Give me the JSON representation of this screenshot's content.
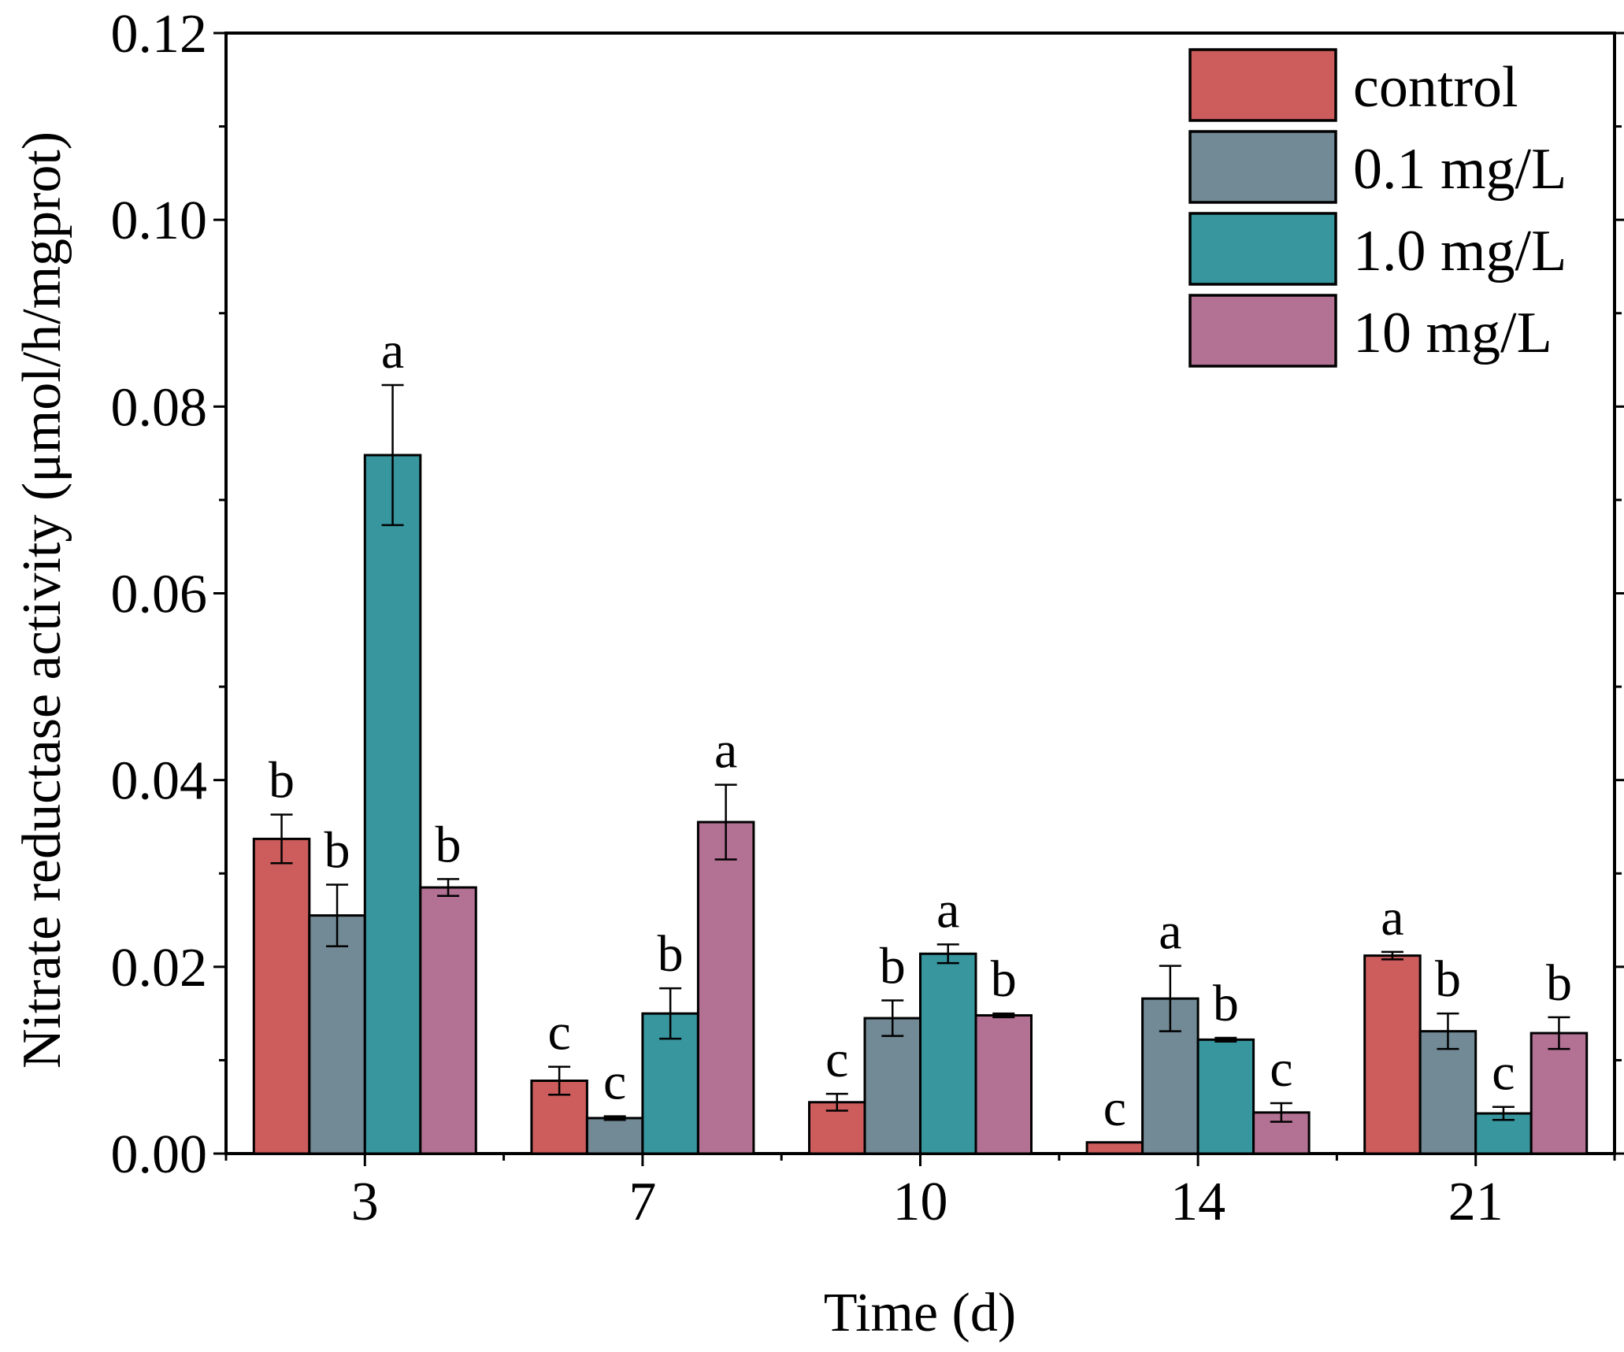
{
  "chart_data": {
    "type": "bar",
    "title": "",
    "xlabel": "Time (d)",
    "ylabel": "Nitrate reductase activity (μmol/h/mgprot)",
    "ylim": [
      0,
      0.12
    ],
    "yticks": [
      "0.00",
      "0.02",
      "0.04",
      "0.06",
      "0.08",
      "0.10",
      "0.12"
    ],
    "ytick_values": [
      0,
      0.02,
      0.04,
      0.06,
      0.08,
      0.1,
      0.12
    ],
    "categories": [
      "3",
      "7",
      "10",
      "14",
      "21"
    ],
    "legend_position": "top-right",
    "series": [
      {
        "name": "control",
        "color": "#cd5c5c",
        "values": [
          0.0337,
          0.0078,
          0.0055,
          0.0012,
          0.0212
        ],
        "errors": [
          0.0026,
          0.0015,
          0.0009,
          0.0,
          0.0004
        ],
        "letters": [
          "b",
          "c",
          "c",
          "c",
          "a"
        ]
      },
      {
        "name": "0.1 mg/L",
        "color": "#728a96",
        "values": [
          0.0255,
          0.0038,
          0.0145,
          0.0166,
          0.0131
        ],
        "errors": [
          0.0033,
          0.0002,
          0.0019,
          0.0035,
          0.0019
        ],
        "letters": [
          "b",
          "c",
          "b",
          "a",
          "b"
        ]
      },
      {
        "name": "1.0 mg/L",
        "color": "#38969f",
        "values": [
          0.0748,
          0.015,
          0.0214,
          0.0122,
          0.0043
        ],
        "errors": [
          0.0075,
          0.0027,
          0.001,
          0.0002,
          0.0007
        ],
        "letters": [
          "a",
          "b",
          "a",
          "b",
          "c"
        ]
      },
      {
        "name": "10 mg/L",
        "color": "#b37193",
        "values": [
          0.0285,
          0.0355,
          0.0148,
          0.0044,
          0.0129
        ],
        "errors": [
          0.0009,
          0.004,
          0.0002,
          0.001,
          0.0017
        ],
        "letters": [
          "b",
          "a",
          "b",
          "c",
          "b"
        ]
      }
    ]
  }
}
